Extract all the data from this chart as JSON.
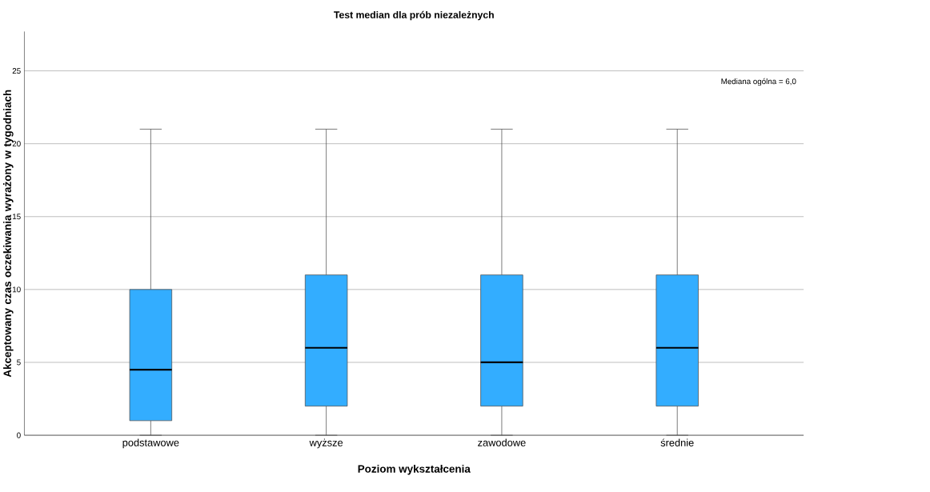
{
  "chart_data": {
    "type": "box",
    "title": "Test median dla prób niezależnych",
    "xlabel": "Poziom wykształcenia",
    "ylabel": "Akceptowany czas oczekiwania wyrażony w tygodniach",
    "categories": [
      "podstawowe",
      "wyższe",
      "zawodowe",
      "średnie"
    ],
    "series": [
      {
        "color": "#33adff",
        "boxes": [
          {
            "low": 0,
            "q1": 1,
            "median": 4.5,
            "q3": 10,
            "high": 21
          },
          {
            "low": 0,
            "q1": 2,
            "median": 6,
            "q3": 11,
            "high": 21
          },
          {
            "low": 0,
            "q1": 2,
            "median": 5,
            "q3": 11,
            "high": 21
          },
          {
            "low": 0,
            "q1": 2,
            "median": 6,
            "q3": 11,
            "high": 21
          }
        ]
      }
    ],
    "ylim": [
      0,
      27.7
    ],
    "yticks": [
      0,
      5,
      10,
      15,
      20,
      25
    ],
    "grid": "y",
    "annotations": [
      "Mediana ogólna = 6,0"
    ]
  }
}
